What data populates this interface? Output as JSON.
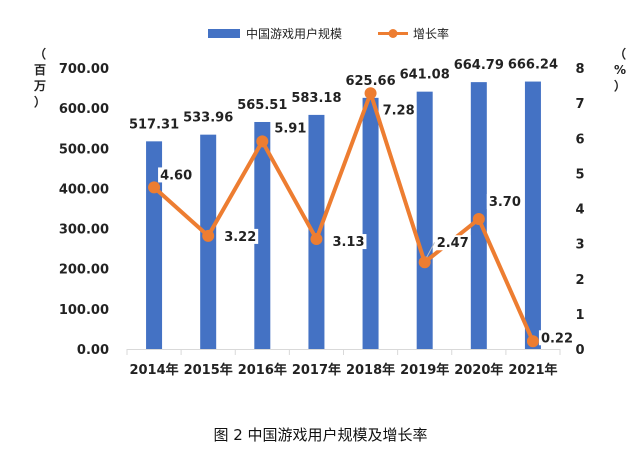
{
  "caption": "图 2 中国游戏用户规模及增长率",
  "colors": {
    "bar": "#4472C4",
    "line": "#ED7D31",
    "axis": "#d9d9d9",
    "text": "#222222"
  },
  "chart_data": {
    "type": "bar",
    "categories": [
      "2014年",
      "2015年",
      "2016年",
      "2017年",
      "2018年",
      "2019年",
      "2020年",
      "2021年"
    ],
    "series": [
      {
        "name": "中国游戏用户规模",
        "type": "bar",
        "axis": "left",
        "values": [
          517.31,
          533.96,
          565.51,
          583.18,
          625.66,
          641.08,
          664.79,
          666.24
        ],
        "labels": [
          "517.31",
          "533.96",
          "565.51",
          "583.18",
          "625.66",
          "641.08",
          "664.79",
          "666.24"
        ]
      },
      {
        "name": "增长率",
        "type": "line",
        "axis": "right",
        "values": [
          4.6,
          3.22,
          5.91,
          3.13,
          7.28,
          2.47,
          3.7,
          0.22
        ],
        "labels": [
          "4.60",
          "3.22",
          "5.91",
          "3.13",
          "7.28",
          "2.47",
          "3.70",
          "0.22"
        ]
      }
    ],
    "y_left": {
      "label": "（百万）",
      "ylim": [
        0,
        700
      ],
      "ticks": [
        "0.00",
        "100.00",
        "200.00",
        "300.00",
        "400.00",
        "500.00",
        "600.00",
        "700.00"
      ]
    },
    "y_right": {
      "label": "（%）",
      "ylim": [
        0,
        8
      ],
      "ticks": [
        "0",
        "1",
        "2",
        "3",
        "4",
        "5",
        "6",
        "7",
        "8"
      ]
    },
    "legend_position": "top",
    "grid": false
  }
}
